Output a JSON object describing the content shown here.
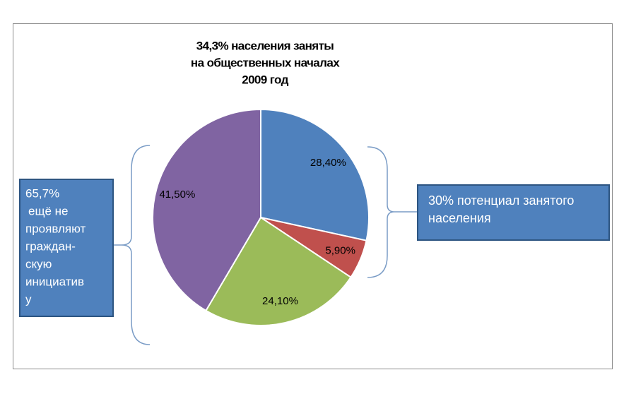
{
  "chart_data": {
    "type": "pie",
    "title": [
      "34,3% населения заняты",
      "на общественных началах",
      "2009 год"
    ],
    "categories": [
      null,
      null,
      null,
      null
    ],
    "values": [
      28.4,
      5.9,
      24.1,
      41.5
    ],
    "value_labels": [
      "28,40%",
      "5,90%",
      "24,10%",
      "41,50%"
    ],
    "colors": [
      "#4f81bd",
      "#c0504d",
      "#9bbb59",
      "#8064a2"
    ],
    "annotations": {
      "left": [
        "65,7%",
        "ещё не",
        "проявляют",
        "граждан-",
        "скую",
        "инициатив",
        "у"
      ],
      "right": [
        "30% потенциал занятого",
        "населения"
      ]
    }
  }
}
